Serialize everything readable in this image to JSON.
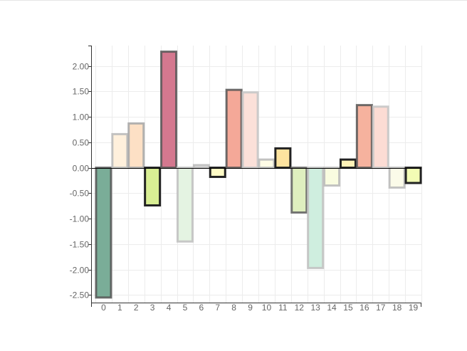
{
  "chart_data": {
    "type": "bar",
    "title": "",
    "xlabel": "",
    "ylabel": "",
    "categories": [
      "0",
      "1",
      "2",
      "3",
      "4",
      "5",
      "6",
      "7",
      "8",
      "9",
      "10",
      "11",
      "12",
      "13",
      "14",
      "15",
      "16",
      "17",
      "18",
      "19"
    ],
    "values": [
      -2.55,
      0.66,
      0.87,
      -0.74,
      2.28,
      -1.45,
      0.05,
      -0.18,
      1.53,
      1.48,
      0.16,
      0.38,
      -0.88,
      -1.97,
      -0.35,
      0.16,
      1.23,
      1.2,
      -0.39,
      -0.3
    ],
    "ylim": [
      -2.65,
      2.4
    ],
    "yticks": [
      "2.00",
      "1.50",
      "1.00",
      "0.50",
      "0.00",
      "-0.50",
      "-1.00",
      "-1.50",
      "-2.00",
      "-2.50"
    ],
    "grid": true,
    "bar_styles": [
      {
        "fill": "#7aad98",
        "stroke": "#555555",
        "stroke_opacity": 0.85
      },
      {
        "fill": "#fff0dc",
        "stroke": "#bbbbbb",
        "stroke_opacity": 0.9
      },
      {
        "fill": "#fde0c5",
        "stroke": "#aaaaaa",
        "stroke_opacity": 0.9
      },
      {
        "fill": "#d9ef94",
        "stroke": "#222222",
        "stroke_opacity": 1
      },
      {
        "fill": "#d4788f",
        "stroke": "#555555",
        "stroke_opacity": 0.85
      },
      {
        "fill": "#e4f3e2",
        "stroke": "#c2c2c2",
        "stroke_opacity": 0.9
      },
      {
        "fill": "#f4f4f4",
        "stroke": "#bbbbbb",
        "stroke_opacity": 0.9
      },
      {
        "fill": "#fffbc6",
        "stroke": "#222222",
        "stroke_opacity": 1
      },
      {
        "fill": "#f4a898",
        "stroke": "#555555",
        "stroke_opacity": 0.85
      },
      {
        "fill": "#fbe0d9",
        "stroke": "#c7c7c7",
        "stroke_opacity": 0.9
      },
      {
        "fill": "#fffce6",
        "stroke": "#bbbbbb",
        "stroke_opacity": 0.9
      },
      {
        "fill": "#fde39f",
        "stroke": "#222222",
        "stroke_opacity": 1
      },
      {
        "fill": "#dfefbf",
        "stroke": "#666666",
        "stroke_opacity": 0.9
      },
      {
        "fill": "#cfeedf",
        "stroke": "#c2c2c2",
        "stroke_opacity": 0.9
      },
      {
        "fill": "#f9fce0",
        "stroke": "#bbbbbb",
        "stroke_opacity": 0.9
      },
      {
        "fill": "#fff3b8",
        "stroke": "#222222",
        "stroke_opacity": 1
      },
      {
        "fill": "#f6b29e",
        "stroke": "#555555",
        "stroke_opacity": 0.85
      },
      {
        "fill": "#fcdcd4",
        "stroke": "#c7c7c7",
        "stroke_opacity": 0.9
      },
      {
        "fill": "#fbfbe9",
        "stroke": "#bbbbbb",
        "stroke_opacity": 0.9
      },
      {
        "fill": "#f3fcb5",
        "stroke": "#222222",
        "stroke_opacity": 1
      }
    ]
  }
}
